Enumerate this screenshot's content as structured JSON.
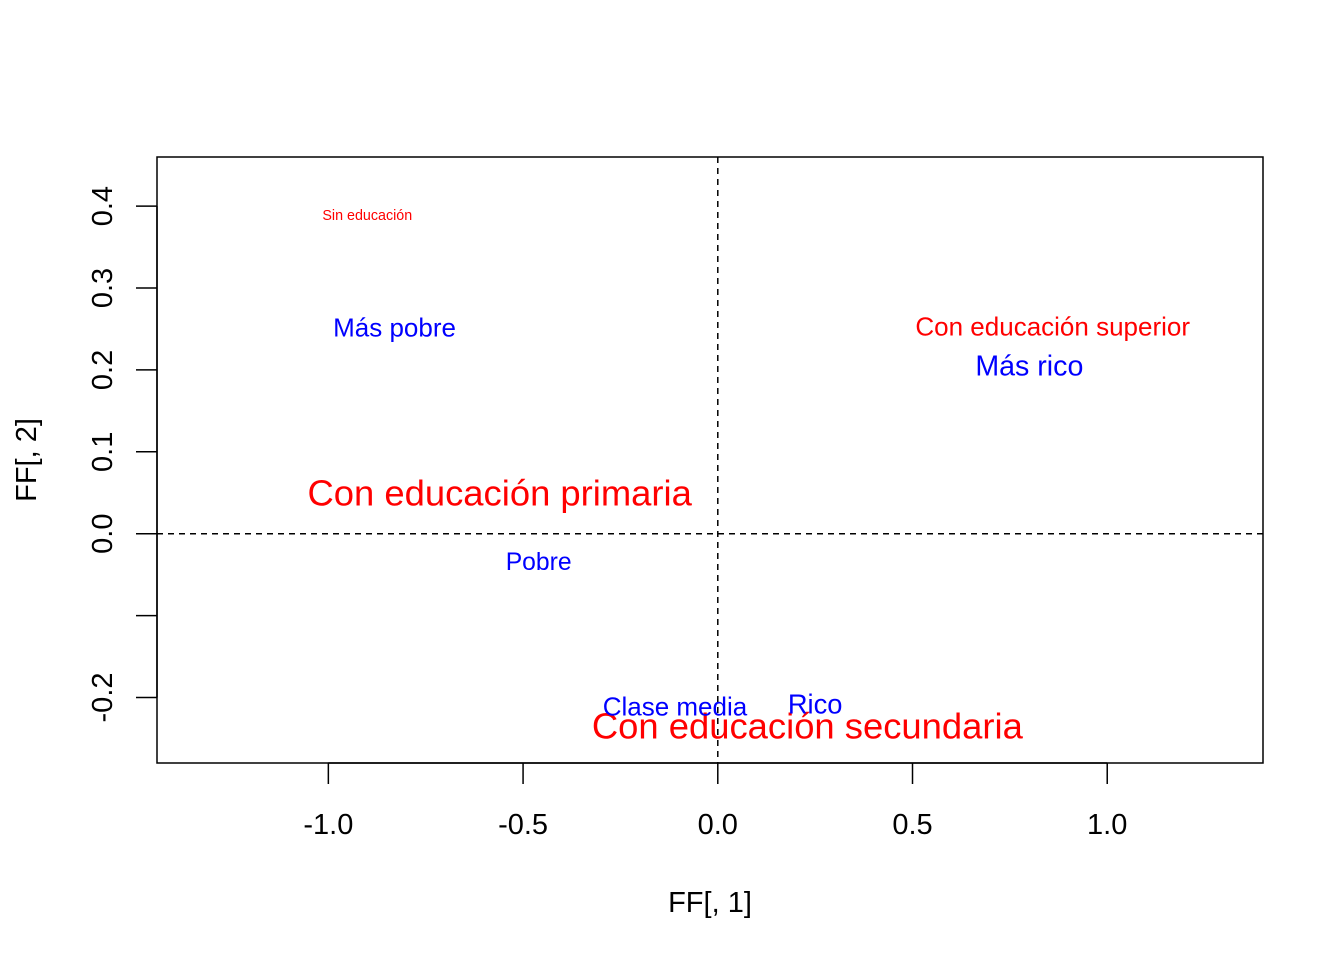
{
  "chart_data": {
    "type": "scatter",
    "title": "",
    "xlabel": "FF[, 1]",
    "ylabel": "FF[, 2]",
    "xlim": [
      -1.44,
      1.4
    ],
    "ylim": [
      -0.28,
      0.46
    ],
    "x_ticks": [
      {
        "value": -1.0,
        "label": "-1.0"
      },
      {
        "value": -0.5,
        "label": "-0.5"
      },
      {
        "value": 0.0,
        "label": "0.0"
      },
      {
        "value": 0.5,
        "label": "0.5"
      },
      {
        "value": 1.0,
        "label": "1.0"
      }
    ],
    "y_ticks": [
      {
        "value": -0.2,
        "label": "-0.2"
      },
      {
        "value": -0.1,
        "label": ""
      },
      {
        "value": 0.0,
        "label": "0.0"
      },
      {
        "value": 0.1,
        "label": "0.1"
      },
      {
        "value": 0.2,
        "label": "0.2"
      },
      {
        "value": 0.3,
        "label": "0.3"
      },
      {
        "value": 0.4,
        "label": "0.4"
      }
    ],
    "reference_lines": {
      "x": 0.0,
      "y": 0.0,
      "style": "dashed"
    },
    "grid": false,
    "legend": "none",
    "series": [
      {
        "color": "#ff0000",
        "points": [
          {
            "label": "Sin educación",
            "x": -0.9,
            "y": 0.388,
            "size": 0.55
          },
          {
            "label": "Con educación superior",
            "x": 0.86,
            "y": 0.253,
            "size": 1.0
          },
          {
            "label": "Con educación primaria",
            "x": -0.56,
            "y": 0.05,
            "size": 1.4
          },
          {
            "label": "Con educación secundaria",
            "x": 0.23,
            "y": -0.235,
            "size": 1.4
          }
        ]
      },
      {
        "color": "#0000ff",
        "points": [
          {
            "label": "Más pobre",
            "x": -0.83,
            "y": 0.252,
            "size": 1.0
          },
          {
            "label": "Más rico",
            "x": 0.8,
            "y": 0.204,
            "size": 1.1
          },
          {
            "label": "Pobre",
            "x": -0.46,
            "y": -0.035,
            "size": 0.95
          },
          {
            "label": "Clase media",
            "x": -0.11,
            "y": -0.211,
            "size": 1.0
          },
          {
            "label": "Rico",
            "x": 0.25,
            "y": -0.208,
            "size": 1.05
          }
        ]
      }
    ]
  }
}
